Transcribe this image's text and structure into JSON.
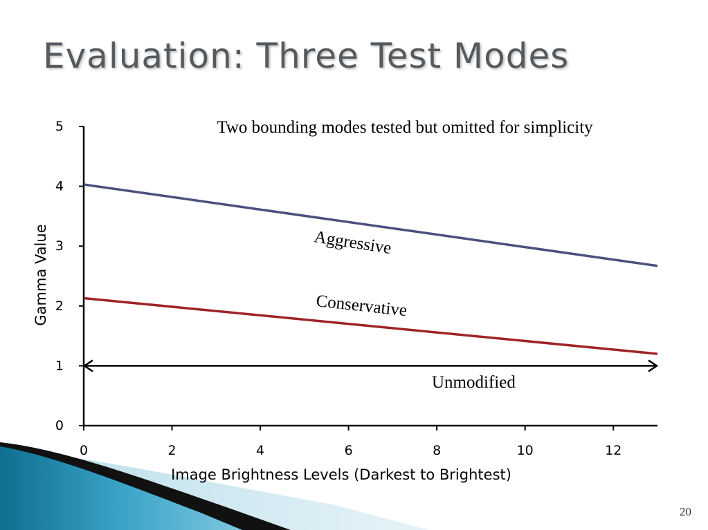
{
  "slide": {
    "title": "Evaluation: Three Test Modes",
    "page_number": "20"
  },
  "chart_data": {
    "type": "line",
    "title": "",
    "xlabel": "Image Brightness Levels (Darkest to Brightest)",
    "ylabel": "Gamma Value",
    "xlim": [
      0,
      13
    ],
    "ylim": [
      0,
      5
    ],
    "x_ticks": [
      0,
      2,
      4,
      6,
      8,
      10,
      12
    ],
    "y_ticks": [
      0,
      1,
      2,
      3,
      4,
      5
    ],
    "grid": false,
    "annotation": "Two bounding modes tested but omitted for simplicity",
    "series": [
      {
        "name": "Aggressive",
        "x": [
          0,
          13
        ],
        "y": [
          4.03,
          2.67
        ],
        "color": "#4d4f7f"
      },
      {
        "name": "Conservative",
        "x": [
          0,
          13
        ],
        "y": [
          2.13,
          1.2
        ],
        "color": "#9e2427"
      },
      {
        "name": "Unmodified",
        "x": [
          0,
          13
        ],
        "y": [
          1,
          1
        ],
        "color": "#000000",
        "style": "double-arrow"
      }
    ]
  }
}
